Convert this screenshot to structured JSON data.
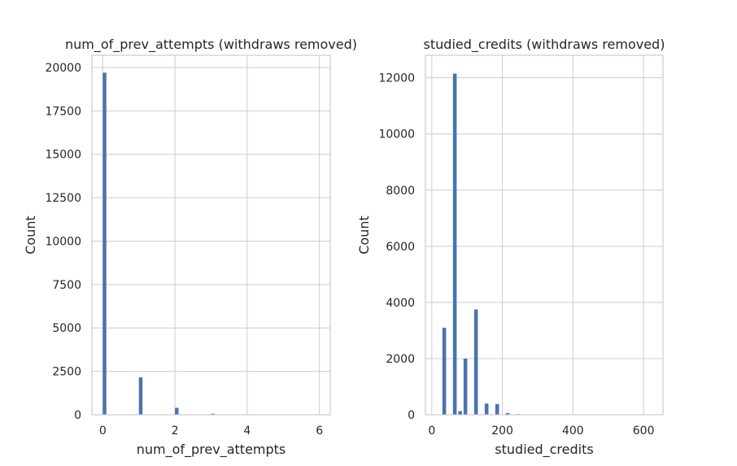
{
  "chart_data": [
    {
      "type": "bar",
      "title": "num_of_prev_attempts (withdraws removed)",
      "xlabel": "num_of_prev_attempts",
      "ylabel": "Count",
      "xlim": [
        -0.3,
        6.3
      ],
      "ylim": [
        0,
        20700
      ],
      "xticks": [
        0,
        2,
        4,
        6
      ],
      "yticks": [
        0,
        2500,
        5000,
        7500,
        10000,
        12500,
        15000,
        17500,
        20000
      ],
      "bar_width": 0.1,
      "x": [
        0,
        1,
        2,
        3
      ],
      "values": [
        19700,
        2150,
        400,
        60
      ],
      "color": "#4c72b0",
      "grid": true
    },
    {
      "type": "bar",
      "title": "studied_credits (withdraws removed)",
      "xlabel": "studied_credits",
      "ylabel": "Count",
      "xlim": [
        -18,
        655
      ],
      "ylim": [
        0,
        12800
      ],
      "xticks": [
        0,
        200,
        400,
        600
      ],
      "yticks": [
        0,
        2000,
        4000,
        6000,
        8000,
        10000,
        12000
      ],
      "bar_width": 10.5,
      "x": [
        30,
        60,
        75,
        90,
        120,
        150,
        180,
        210,
        240,
        270
      ],
      "values": [
        3100,
        12150,
        130,
        2000,
        3750,
        400,
        380,
        60,
        25,
        15
      ],
      "color": "#4c72b0",
      "grid": true
    }
  ]
}
